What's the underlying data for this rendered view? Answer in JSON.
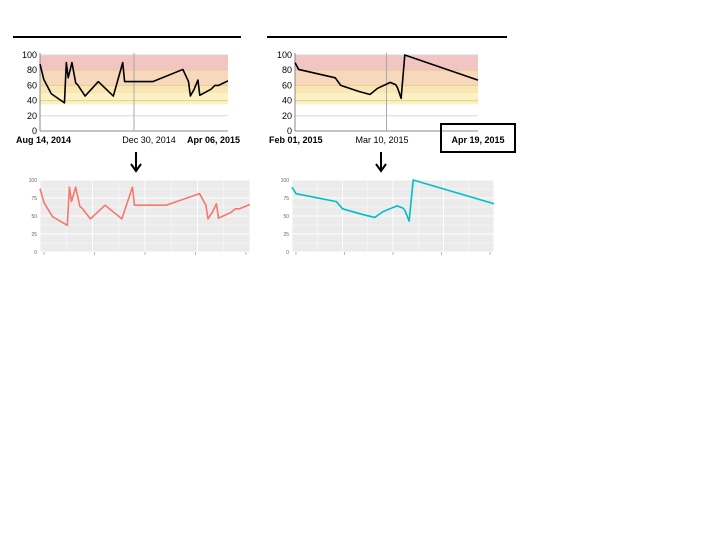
{
  "colors": {
    "bands": [
      "#f2c5c2",
      "#f7d8bd",
      "#f9e6b4",
      "#fbf2c4"
    ],
    "band_lines": [
      "#f0d090",
      "#f3df88",
      "#f5e88a"
    ],
    "source_line": "#000000",
    "left_small_line": "#f8766d",
    "right_small_line": "#00bfc4",
    "small_bg": "#ebebeb",
    "small_grid": "#ffffff"
  },
  "chart_data": [
    {
      "type": "line",
      "panel": "top-left",
      "title": "",
      "xlabel": "",
      "ylabel": "",
      "ylim": [
        0,
        100
      ],
      "yticks": [
        "0",
        "20",
        "40",
        "60",
        "80",
        "100"
      ],
      "x_labels": [
        "Aug 14, 2014",
        "Dec 30, 2014",
        "Apr 06, 2015"
      ],
      "x_label_bold": [
        true,
        false,
        true
      ],
      "bands": [
        [
          80,
          100
        ],
        [
          60,
          80
        ],
        [
          50,
          60
        ],
        [
          35,
          50
        ]
      ],
      "x": [
        0,
        0.02,
        0.06,
        0.13,
        0.14,
        0.15,
        0.17,
        0.19,
        0.2,
        0.24,
        0.31,
        0.39,
        0.44,
        0.45,
        0.46,
        0.55,
        0.58,
        0.59,
        0.6,
        0.76,
        0.79,
        0.8,
        0.82,
        0.84,
        0.85,
        0.91,
        0.93,
        0.95,
        1.0
      ],
      "y": [
        88,
        68,
        49,
        37,
        90,
        70,
        90,
        63,
        61,
        46,
        65,
        46,
        90,
        65,
        65,
        65,
        65,
        65,
        65,
        81,
        65,
        46,
        55,
        67,
        47,
        55,
        60,
        60,
        66
      ]
    },
    {
      "type": "line",
      "panel": "top-right",
      "title": "",
      "xlabel": "",
      "ylabel": "",
      "ylim": [
        0,
        100
      ],
      "yticks": [
        "0",
        "20",
        "40",
        "60",
        "80",
        "100"
      ],
      "x_labels": [
        "Feb 01, 2015",
        "Mar 10, 2015",
        "Apr 19, 2015"
      ],
      "x_label_bold": [
        true,
        false,
        true
      ],
      "highlighted_label": "Apr 19, 2015",
      "bands": [
        [
          80,
          100
        ],
        [
          60,
          80
        ],
        [
          50,
          60
        ],
        [
          35,
          50
        ]
      ],
      "x": [
        0,
        0.02,
        0.22,
        0.25,
        0.35,
        0.41,
        0.45,
        0.52,
        0.55,
        0.56,
        0.58,
        0.6,
        1.0
      ],
      "y": [
        90,
        81,
        70,
        60,
        52,
        48,
        56,
        64,
        61,
        57,
        43,
        100,
        67
      ]
    },
    {
      "type": "line",
      "panel": "bottom-left",
      "ylim": [
        0,
        100
      ],
      "yticks": [
        "0",
        "25",
        "50",
        "75",
        "100"
      ],
      "x": [
        0,
        0.02,
        0.06,
        0.13,
        0.14,
        0.15,
        0.17,
        0.19,
        0.2,
        0.24,
        0.31,
        0.39,
        0.44,
        0.45,
        0.46,
        0.55,
        0.58,
        0.59,
        0.6,
        0.76,
        0.79,
        0.8,
        0.82,
        0.84,
        0.85,
        0.91,
        0.93,
        0.95,
        1.0
      ],
      "y": [
        88,
        68,
        49,
        37,
        90,
        70,
        90,
        63,
        61,
        46,
        65,
        46,
        90,
        65,
        65,
        65,
        65,
        65,
        65,
        81,
        65,
        46,
        55,
        67,
        47,
        55,
        60,
        60,
        66
      ]
    },
    {
      "type": "line",
      "panel": "bottom-right",
      "ylim": [
        0,
        100
      ],
      "yticks": [
        "0",
        "25",
        "50",
        "75",
        "100"
      ],
      "x": [
        0,
        0.02,
        0.22,
        0.25,
        0.35,
        0.41,
        0.45,
        0.52,
        0.55,
        0.56,
        0.58,
        0.6,
        1.0
      ],
      "y": [
        90,
        81,
        70,
        60,
        52,
        48,
        56,
        64,
        61,
        57,
        43,
        100,
        67
      ]
    }
  ]
}
